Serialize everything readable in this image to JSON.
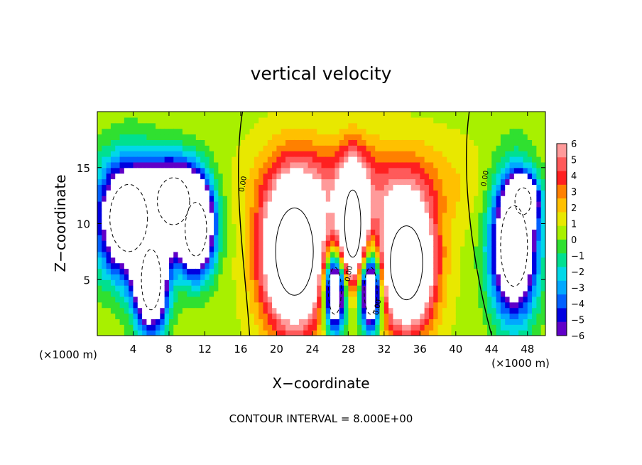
{
  "chart_data": {
    "type": "heatmap",
    "title": "vertical velocity",
    "xlabel": "X−coordinate",
    "ylabel": "Z−coordinate",
    "x_unit": "(×1000 m)",
    "x_ticks": [
      4,
      8,
      12,
      16,
      20,
      24,
      28,
      32,
      36,
      40,
      44,
      48
    ],
    "y_ticks": [
      5,
      10,
      15
    ],
    "xlim": [
      0,
      50
    ],
    "ylim": [
      0,
      20
    ],
    "footer": "CONTOUR INTERVAL = 8.000E+00",
    "contour_label": "0.00",
    "colorbar": {
      "labels": [
        "6",
        "5",
        "4",
        "3",
        "2",
        "1",
        "0",
        "−1",
        "−2",
        "−3",
        "−4",
        "−5",
        "−6"
      ],
      "colors": [
        "#ff9a9a",
        "#ff5a5a",
        "#ff2020",
        "#ff8000",
        "#ffc000",
        "#e8e800",
        "#a8f000",
        "#30e030",
        "#00e090",
        "#00d8e8",
        "#00a8ff",
        "#0060ff",
        "#0000e0",
        "#6000c8"
      ],
      "min": -6,
      "max": 6
    },
    "features": [
      {
        "sign": "neg",
        "x": 3.5,
        "z": 10.5,
        "rx": 3.5,
        "rz": 5.0
      },
      {
        "sign": "neg",
        "x": 8.5,
        "z": 12.0,
        "rx": 3.0,
        "rz": 3.5
      },
      {
        "sign": "neg",
        "x": 6.0,
        "z": 5.0,
        "rx": 1.8,
        "rz": 4.5
      },
      {
        "sign": "neg",
        "x": 11.0,
        "z": 9.5,
        "rx": 2.0,
        "rz": 4.0
      },
      {
        "sign": "pos",
        "x": 22.0,
        "z": 7.5,
        "rx": 3.5,
        "rz": 6.5
      },
      {
        "sign": "pos",
        "x": 28.5,
        "z": 10.0,
        "rx": 1.5,
        "rz": 5.0
      },
      {
        "sign": "pos",
        "x": 34.5,
        "z": 6.5,
        "rx": 3.0,
        "rz": 5.5
      },
      {
        "sign": "neg",
        "x": 26.5,
        "z": 4.0,
        "rx": 1.2,
        "rz": 3.5
      },
      {
        "sign": "neg",
        "x": 30.5,
        "z": 4.0,
        "rx": 1.2,
        "rz": 3.5
      },
      {
        "sign": "neg",
        "x": 46.5,
        "z": 8.0,
        "rx": 2.5,
        "rz": 6.0
      },
      {
        "sign": "neg",
        "x": 47.5,
        "z": 12.0,
        "rx": 1.5,
        "rz": 2.0
      }
    ]
  }
}
